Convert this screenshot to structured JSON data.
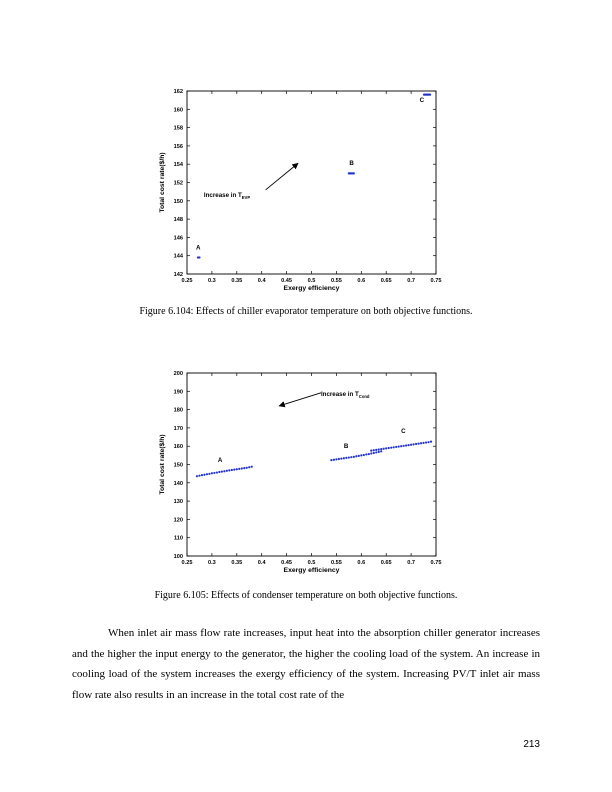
{
  "chart_data": [
    {
      "type": "scatter",
      "title": "",
      "xlabel": "Exergy efficiency",
      "ylabel": "Total cost rate($/h)",
      "xlim": [
        0.25,
        0.75
      ],
      "ylim": [
        142,
        162
      ],
      "xticks": [
        "0.25",
        "0.3",
        "0.35",
        "0.4",
        "0.45",
        "0.5",
        "0.55",
        "0.6",
        "0.65",
        "0.7",
        "0.75"
      ],
      "yticks": [
        "142",
        "144",
        "146",
        "148",
        "150",
        "152",
        "154",
        "156",
        "158",
        "160",
        "162"
      ],
      "grid": false,
      "point_color": "#2233cc",
      "series": [
        {
          "points": [
            [
              0.272,
              143.8
            ],
            [
              0.275,
              143.8
            ]
          ]
        },
        {
          "points": [
            [
              0.575,
              153.0
            ],
            [
              0.577,
              153.0
            ],
            [
              0.579,
              153.0
            ],
            [
              0.581,
              153.0
            ],
            [
              0.583,
              153.0
            ],
            [
              0.585,
              153.0
            ]
          ]
        },
        {
          "points": [
            [
              0.726,
              161.6
            ],
            [
              0.728,
              161.6
            ],
            [
              0.73,
              161.6
            ],
            [
              0.732,
              161.6
            ],
            [
              0.734,
              161.6
            ],
            [
              0.736,
              161.6
            ],
            [
              0.738,
              161.6
            ]
          ]
        }
      ],
      "annotations": [
        {
          "text": "A",
          "x": 0.268,
          "y": 144.7
        },
        {
          "text": "B",
          "x": 0.576,
          "y": 153.9
        },
        {
          "text": "C",
          "x": 0.717,
          "y": 160.8
        },
        {
          "text": "Increase in T",
          "sub": "EVP",
          "x": 0.284,
          "y": 150.4
        }
      ],
      "arrow": {
        "from": [
          0.408,
          151.2
        ],
        "to": [
          0.473,
          154.1
        ]
      }
    },
    {
      "type": "scatter",
      "title": "",
      "xlabel": "Exergy efficiency",
      "ylabel": "Total cost rate($/h)",
      "xlim": [
        0.25,
        0.75
      ],
      "ylim": [
        100,
        200
      ],
      "xticks": [
        "0.25",
        "0.3",
        "0.35",
        "0.4",
        "0.45",
        "0.5",
        "0.55",
        "0.6",
        "0.65",
        "0.7",
        "0.75"
      ],
      "yticks": [
        "100",
        "110",
        "120",
        "130",
        "140",
        "150",
        "160",
        "170",
        "180",
        "190",
        "200"
      ],
      "grid": false,
      "point_color": "#2233cc",
      "series": [
        {
          "points": [
            [
              0.27,
              143.6
            ],
            [
              0.275,
              143.9
            ],
            [
              0.28,
              144.2
            ],
            [
              0.285,
              144.4
            ],
            [
              0.29,
              144.7
            ],
            [
              0.295,
              144.9
            ],
            [
              0.3,
              145.2
            ],
            [
              0.305,
              145.4
            ],
            [
              0.31,
              145.6
            ],
            [
              0.315,
              145.9
            ],
            [
              0.32,
              146.1
            ],
            [
              0.325,
              146.3
            ],
            [
              0.33,
              146.6
            ],
            [
              0.335,
              146.8
            ],
            [
              0.34,
              147.0
            ],
            [
              0.345,
              147.2
            ],
            [
              0.35,
              147.4
            ],
            [
              0.355,
              147.6
            ],
            [
              0.36,
              147.8
            ],
            [
              0.365,
              148.0
            ],
            [
              0.37,
              148.2
            ],
            [
              0.375,
              148.5
            ],
            [
              0.38,
              148.8
            ]
          ]
        },
        {
          "points": [
            [
              0.54,
              152.4
            ],
            [
              0.545,
              152.6
            ],
            [
              0.55,
              152.8
            ],
            [
              0.555,
              153.0
            ],
            [
              0.56,
              153.2
            ],
            [
              0.565,
              153.4
            ],
            [
              0.57,
              153.6
            ],
            [
              0.575,
              153.8
            ],
            [
              0.58,
              154.0
            ],
            [
              0.585,
              154.2
            ],
            [
              0.59,
              154.5
            ],
            [
              0.595,
              154.7
            ],
            [
              0.6,
              155.0
            ],
            [
              0.605,
              155.2
            ],
            [
              0.61,
              155.5
            ],
            [
              0.615,
              155.7
            ],
            [
              0.62,
              156.0
            ],
            [
              0.625,
              156.3
            ],
            [
              0.63,
              156.6
            ],
            [
              0.635,
              156.9
            ],
            [
              0.64,
              157.2
            ]
          ]
        },
        {
          "points": [
            [
              0.62,
              157.6
            ],
            [
              0.625,
              157.8
            ],
            [
              0.63,
              158.0
            ],
            [
              0.635,
              158.2
            ],
            [
              0.64,
              158.4
            ],
            [
              0.645,
              158.6
            ],
            [
              0.65,
              158.8
            ],
            [
              0.655,
              159.0
            ],
            [
              0.66,
              159.2
            ],
            [
              0.665,
              159.4
            ],
            [
              0.67,
              159.6
            ],
            [
              0.675,
              159.8
            ],
            [
              0.68,
              160.0
            ],
            [
              0.685,
              160.2
            ],
            [
              0.69,
              160.4
            ],
            [
              0.695,
              160.6
            ],
            [
              0.7,
              160.8
            ],
            [
              0.705,
              161.0
            ],
            [
              0.71,
              161.2
            ],
            [
              0.715,
              161.4
            ],
            [
              0.72,
              161.6
            ],
            [
              0.725,
              161.8
            ],
            [
              0.73,
              162.0
            ],
            [
              0.735,
              162.2
            ],
            [
              0.74,
              162.5
            ]
          ]
        }
      ],
      "annotations": [
        {
          "text": "A",
          "x": 0.312,
          "y": 151.5
        },
        {
          "text": "B",
          "x": 0.565,
          "y": 159.0
        },
        {
          "text": "C",
          "x": 0.68,
          "y": 167.2
        },
        {
          "text": "Increase in T",
          "sub": "Cond",
          "x": 0.519,
          "y": 187.3
        }
      ],
      "arrow": {
        "from": [
          0.519,
          189.2
        ],
        "to": [
          0.435,
          182.0
        ]
      }
    }
  ],
  "figures": [
    {
      "caption": "Figure 6.104: Effects of chiller evaporator temperature on both objective functions."
    },
    {
      "caption": "Figure 6.105: Effects of condenser temperature on both objective functions."
    }
  ],
  "body": {
    "paragraph": "When inlet air mass flow rate increases, input heat into the absorption chiller generator increases and the higher the input energy to the generator, the higher the cooling load of the system. An increase in cooling load of the system increases the exergy efficiency of the system. Increasing PV/T inlet air mass flow rate also results in an increase in the total cost rate of the"
  },
  "page_number": "213"
}
